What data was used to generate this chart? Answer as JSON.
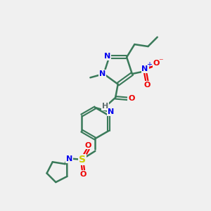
{
  "bg_color": "#f0f0f0",
  "bond_color": "#3a7a5a",
  "bond_width": 1.8,
  "atom_colors": {
    "N": "#0000ee",
    "O": "#ee0000",
    "S": "#cccc00",
    "C": "#3a7a5a",
    "H": "#607070"
  }
}
